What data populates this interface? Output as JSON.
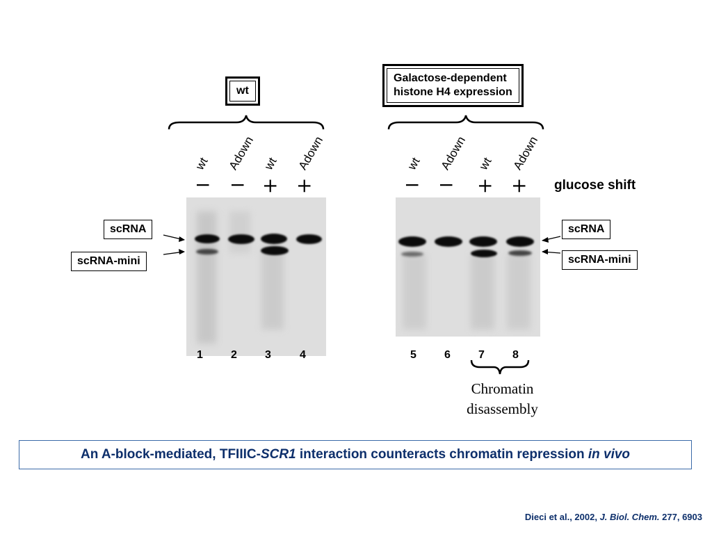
{
  "left_panel": {
    "group_label": "wt",
    "lanes": [
      {
        "label": "wt",
        "sign": "−",
        "number": "1"
      },
      {
        "label": "Adown",
        "sign": "−",
        "number": "2"
      },
      {
        "label": "wt",
        "sign": "+",
        "number": "3"
      },
      {
        "label": "Adown",
        "sign": "+",
        "number": "4"
      }
    ],
    "marker_upper": "scRNA",
    "marker_lower": "scRNA-mini"
  },
  "right_panel": {
    "group_label_line1": "Galactose-dependent",
    "group_label_line2": "histone H4 expression",
    "lanes": [
      {
        "label": "wt",
        "sign": "−",
        "number": "5"
      },
      {
        "label": "Adown",
        "sign": "−",
        "number": "6"
      },
      {
        "label": "wt",
        "sign": "+",
        "number": "7"
      },
      {
        "label": "Adown",
        "sign": "+",
        "number": "8"
      }
    ],
    "condition_label": "glucose shift",
    "marker_upper": "scRNA",
    "marker_lower": "scRNA-mini",
    "bracket_note_line1": "Chromatin",
    "bracket_note_line2": "disassembly"
  },
  "caption": {
    "part1": "An A-block-mediated, TFIIIC-",
    "gene": "SCR1",
    "part2": " interaction counteracts chromatin repression ",
    "emph": "in vivo"
  },
  "citation": {
    "authors": "Dieci et al., 2002, ",
    "journal": "J. Biol. Chem.",
    "rest": " 277, 6903"
  }
}
